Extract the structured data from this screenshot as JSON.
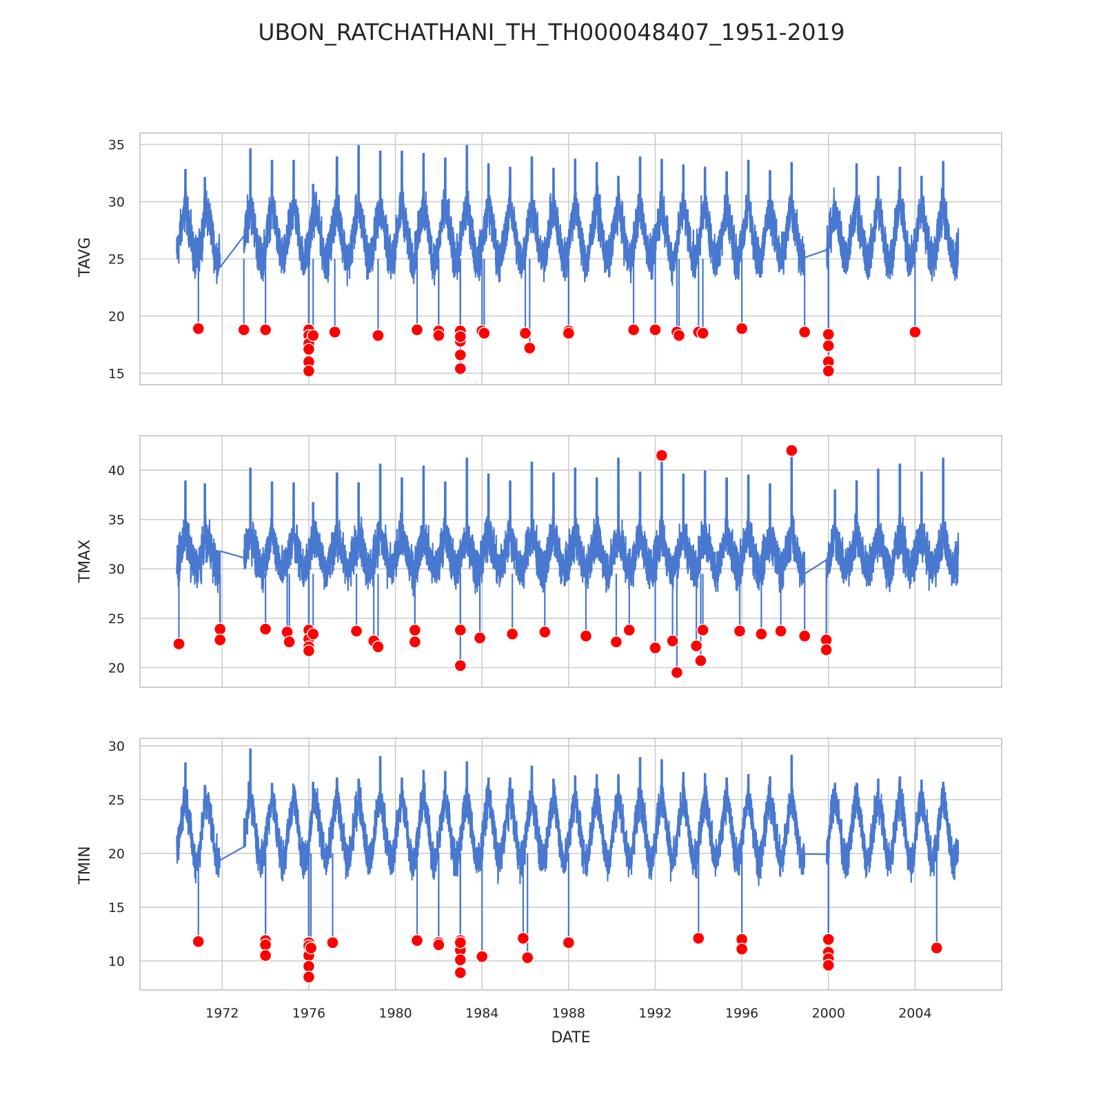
{
  "figure": {
    "title": "UBON_RATCHATHANI_TH_TH000048407_1951-2019",
    "xlabel": "DATE"
  },
  "colors": {
    "line": "#4878cf",
    "anomaly": "#ff0000",
    "grid": "#cccccc",
    "frame": "#cccccc",
    "text": "#262626"
  },
  "x_ticks": [
    "1972",
    "1976",
    "1980",
    "1984",
    "1988",
    "1992",
    "1996",
    "2000",
    "2004"
  ],
  "chart_data": [
    {
      "type": "line",
      "name": "TAVG",
      "ylabel": "TAVG",
      "xlim": [
        1968.2,
        2008.0
      ],
      "ylim": [
        14.0,
        36.0
      ],
      "yticks": [
        15,
        20,
        25,
        30,
        35
      ],
      "grid": true,
      "segments": [
        [
          1969.9,
          1971.9
        ],
        [
          1973.0,
          1998.9
        ],
        [
          1999.9,
          2006.0
        ]
      ],
      "baseline": 27.0,
      "amplitude": 3.5,
      "noise": 2.8,
      "peaks": [
        [
          1970.3,
          32.8
        ],
        [
          1971.2,
          32.1
        ],
        [
          1973.3,
          34.6
        ],
        [
          1974.3,
          33.6
        ],
        [
          1975.3,
          33.6
        ],
        [
          1976.2,
          31.5
        ],
        [
          1977.3,
          33.9
        ],
        [
          1978.3,
          34.9
        ],
        [
          1979.3,
          34.4
        ],
        [
          1980.3,
          34.4
        ],
        [
          1981.3,
          34.2
        ],
        [
          1982.3,
          33.8
        ],
        [
          1983.3,
          34.9
        ],
        [
          1984.3,
          33.3
        ],
        [
          1985.3,
          33.0
        ],
        [
          1986.3,
          33.9
        ],
        [
          1987.3,
          32.9
        ],
        [
          1988.3,
          33.7
        ],
        [
          1989.3,
          33.4
        ],
        [
          1990.3,
          32.2
        ],
        [
          1991.3,
          33.9
        ],
        [
          1992.3,
          33.7
        ],
        [
          1993.3,
          33.2
        ],
        [
          1994.3,
          33.0
        ],
        [
          1995.3,
          32.6
        ],
        [
          1996.3,
          33.6
        ],
        [
          1997.3,
          32.7
        ],
        [
          1998.3,
          33.4
        ],
        [
          2000.3,
          30.0
        ],
        [
          2001.3,
          33.3
        ],
        [
          2002.3,
          32.2
        ],
        [
          2003.3,
          33.0
        ],
        [
          2004.3,
          32.2
        ],
        [
          2005.3,
          33.5
        ]
      ],
      "anomalies": {
        "x": [
          1970.9,
          1973.0,
          1974.0,
          1976.0,
          1976.0,
          1976.0,
          1976.0,
          1976.0,
          1976.0,
          1976.2,
          1977.2,
          1979.2,
          1981.0,
          1982.0,
          1982.0,
          1983.0,
          1983.0,
          1983.0,
          1983.0,
          1983.0,
          1984.0,
          1984.1,
          1986.0,
          1986.2,
          1988.0,
          1988.0,
          1991.0,
          1992.0,
          1993.0,
          1993.1,
          1994.0,
          1994.2,
          1996.0,
          1998.9,
          2000.0,
          2000.0,
          2000.0,
          2000.0,
          2004.0
        ],
        "y": [
          18.9,
          18.8,
          18.8,
          18.8,
          18.3,
          17.6,
          17.1,
          16.0,
          15.2,
          18.3,
          18.6,
          18.3,
          18.8,
          18.7,
          18.3,
          18.7,
          17.8,
          16.6,
          15.4,
          18.2,
          18.7,
          18.5,
          18.5,
          17.2,
          18.7,
          18.5,
          18.8,
          18.8,
          18.6,
          18.3,
          18.6,
          18.5,
          18.9,
          18.6,
          18.4,
          17.4,
          16.0,
          15.2,
          18.6
        ]
      }
    },
    {
      "type": "line",
      "name": "TMAX",
      "ylabel": "TMAX",
      "xlim": [
        1968.2,
        2008.0
      ],
      "ylim": [
        18.0,
        43.5
      ],
      "yticks": [
        20,
        25,
        30,
        35,
        40
      ],
      "grid": true,
      "segments": [
        [
          1969.9,
          1971.9
        ],
        [
          1973.0,
          1998.9
        ],
        [
          1999.9,
          2006.0
        ]
      ],
      "baseline": 31.5,
      "amplitude": 2.5,
      "noise": 3.2,
      "peaks": [
        [
          1970.3,
          38.9
        ],
        [
          1971.2,
          38.6
        ],
        [
          1973.3,
          40.2
        ],
        [
          1974.3,
          38.8
        ],
        [
          1975.3,
          38.7
        ],
        [
          1976.2,
          36.7
        ],
        [
          1977.3,
          39.7
        ],
        [
          1978.3,
          38.7
        ],
        [
          1979.3,
          40.6
        ],
        [
          1980.3,
          39.2
        ],
        [
          1981.3,
          40.4
        ],
        [
          1982.3,
          38.8
        ],
        [
          1983.3,
          41.2
        ],
        [
          1984.3,
          39.6
        ],
        [
          1985.3,
          38.9
        ],
        [
          1986.3,
          40.8
        ],
        [
          1987.3,
          39.7
        ],
        [
          1988.3,
          40.2
        ],
        [
          1989.3,
          39.2
        ],
        [
          1990.3,
          41.2
        ],
        [
          1991.3,
          39.8
        ],
        [
          1992.3,
          41.2
        ],
        [
          1993.3,
          39.6
        ],
        [
          1994.3,
          39.9
        ],
        [
          1995.3,
          39.2
        ],
        [
          1996.3,
          39.5
        ],
        [
          1997.3,
          38.6
        ],
        [
          1998.3,
          41.9
        ],
        [
          2000.3,
          38.0
        ],
        [
          2001.3,
          38.9
        ],
        [
          2002.3,
          40.1
        ],
        [
          2003.3,
          40.6
        ],
        [
          2004.3,
          39.8
        ],
        [
          2005.3,
          41.2
        ]
      ],
      "anomalies": {
        "x": [
          1970.0,
          1971.9,
          1971.9,
          1974.0,
          1975.0,
          1975.1,
          1976.0,
          1976.0,
          1976.0,
          1976.0,
          1976.2,
          1978.2,
          1979.0,
          1979.2,
          1980.9,
          1980.9,
          1983.0,
          1983.0,
          1983.9,
          1985.4,
          1986.9,
          1988.8,
          1990.2,
          1990.8,
          1992.0,
          1992.3,
          1992.8,
          1993.0,
          1993.9,
          1994.1,
          1994.2,
          1995.9,
          1996.9,
          1997.8,
          1998.9,
          1999.9,
          1999.9,
          1998.3
        ],
        "y": [
          22.4,
          23.9,
          22.8,
          23.9,
          23.6,
          22.6,
          23.8,
          22.9,
          22.1,
          21.7,
          23.4,
          23.7,
          22.7,
          22.1,
          23.8,
          22.6,
          23.8,
          20.2,
          23.0,
          23.4,
          23.6,
          23.2,
          22.6,
          23.8,
          22.0,
          41.5,
          22.7,
          19.5,
          22.2,
          20.7,
          23.8,
          23.7,
          23.4,
          23.7,
          23.2,
          22.8,
          21.8,
          42.0
        ]
      }
    },
    {
      "type": "line",
      "name": "TMIN",
      "ylabel": "TMIN",
      "xlim": [
        1968.2,
        2008.0
      ],
      "ylim": [
        7.3,
        30.7
      ],
      "yticks": [
        10,
        15,
        20,
        25,
        30
      ],
      "grid": true,
      "segments": [
        [
          1969.9,
          1971.9
        ],
        [
          1973.0,
          1998.9
        ],
        [
          1999.9,
          2006.0
        ]
      ],
      "baseline": 22.0,
      "amplitude": 4.5,
      "noise": 2.6,
      "peaks": [
        [
          1970.3,
          28.4
        ],
        [
          1971.2,
          26.3
        ],
        [
          1973.3,
          29.7
        ],
        [
          1974.3,
          26.5
        ],
        [
          1975.3,
          26.3
        ],
        [
          1976.2,
          26.6
        ],
        [
          1977.3,
          27.0
        ],
        [
          1978.3,
          26.9
        ],
        [
          1979.3,
          29.0
        ],
        [
          1980.3,
          27.0
        ],
        [
          1981.3,
          27.7
        ],
        [
          1982.3,
          27.6
        ],
        [
          1983.3,
          28.5
        ],
        [
          1984.3,
          27.0
        ],
        [
          1985.3,
          27.0
        ],
        [
          1986.3,
          28.1
        ],
        [
          1987.3,
          26.9
        ],
        [
          1988.3,
          27.2
        ],
        [
          1989.3,
          27.3
        ],
        [
          1990.3,
          27.3
        ],
        [
          1991.3,
          28.9
        ],
        [
          1992.3,
          28.7
        ],
        [
          1993.3,
          27.5
        ],
        [
          1994.3,
          27.4
        ],
        [
          1995.3,
          27.0
        ],
        [
          1996.3,
          27.3
        ],
        [
          1997.3,
          27.1
        ],
        [
          1998.3,
          29.1
        ],
        [
          2000.3,
          26.5
        ],
        [
          2001.3,
          26.5
        ],
        [
          2002.3,
          26.9
        ],
        [
          2003.3,
          27.1
        ],
        [
          2004.3,
          26.8
        ],
        [
          2005.3,
          26.6
        ]
      ],
      "anomalies": {
        "x": [
          1970.9,
          1974.0,
          1974.0,
          1974.0,
          1976.0,
          1976.0,
          1976.0,
          1976.0,
          1976.0,
          1976.0,
          1976.1,
          1977.1,
          1981.0,
          1982.0,
          1982.0,
          1983.0,
          1983.0,
          1983.0,
          1983.0,
          1983.0,
          1984.0,
          1985.9,
          1986.1,
          1988.0,
          1994.0,
          1996.0,
          1996.0,
          2000.0,
          2000.0,
          2000.0,
          2000.0,
          2005.0
        ],
        "y": [
          11.8,
          11.9,
          11.5,
          10.5,
          11.7,
          11.2,
          10.5,
          9.5,
          8.5,
          11.4,
          11.2,
          11.7,
          11.9,
          11.7,
          11.5,
          11.9,
          11.0,
          10.1,
          8.9,
          11.7,
          10.4,
          12.1,
          10.3,
          11.7,
          12.1,
          12.0,
          11.1,
          12.0,
          10.8,
          10.2,
          9.6,
          11.2
        ]
      }
    }
  ]
}
